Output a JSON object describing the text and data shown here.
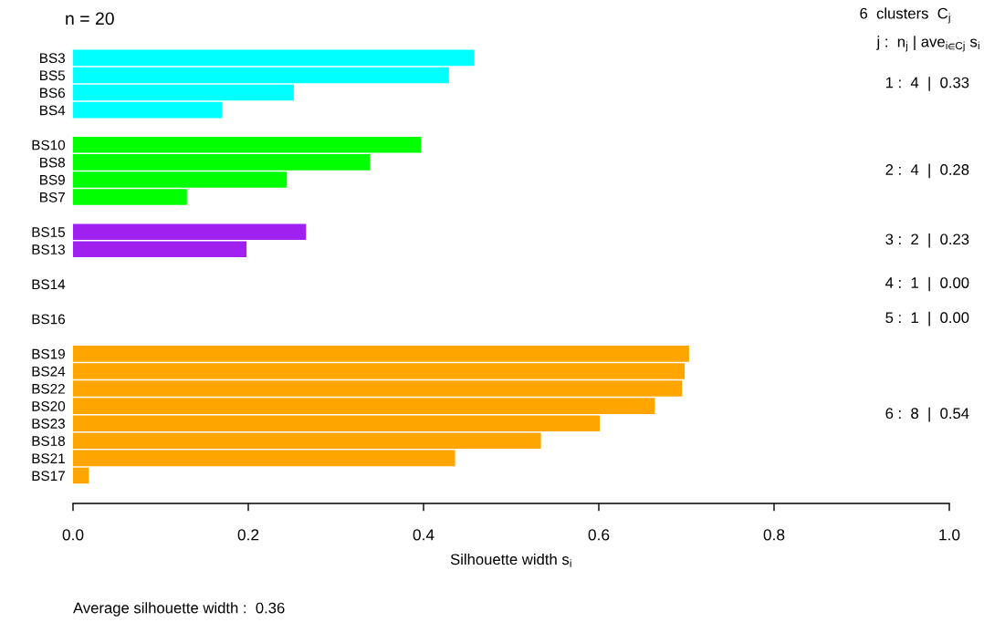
{
  "chart_data": {
    "type": "bar",
    "orientation": "horizontal",
    "xlabel": "Silhouette width s$_{i}$",
    "categories": [
      "BS3",
      "BS5",
      "BS6",
      "BS4",
      null,
      "BS10",
      "BS8",
      "BS9",
      "BS7",
      null,
      "BS15",
      "BS13",
      null,
      "BS14",
      null,
      "BS16",
      null,
      "BS19",
      "BS24",
      "BS22",
      "BS20",
      "BS23",
      "BS18",
      "BS21",
      "BS17"
    ],
    "values": [
      0.458,
      0.429,
      0.252,
      0.17,
      null,
      0.397,
      0.339,
      0.244,
      0.13,
      null,
      0.266,
      0.198,
      null,
      0,
      null,
      0,
      null,
      0.703,
      0.698,
      0.695,
      0.664,
      0.601,
      0.534,
      0.436,
      0.018
    ],
    "colors": [
      "#00ffff",
      "#00ffff",
      "#00ffff",
      "#00ffff",
      null,
      "#00ff00",
      "#00ff00",
      "#00ff00",
      "#00ff00",
      null,
      "#a020f0",
      "#a020f0",
      null,
      null,
      null,
      null,
      null,
      "#ffa500",
      "#ffa500",
      "#ffa500",
      "#ffa500",
      "#ffa500",
      "#ffa500",
      "#ffa500",
      "#ffa500"
    ],
    "xlim": [
      0,
      1
    ],
    "xticks": [
      {
        "value": 0,
        "label": "0.0"
      },
      0.2,
      0.4,
      0.6,
      0.8,
      {
        "value": 1,
        "label": "1.0"
      }
    ],
    "annotations": [
      "n = 20",
      "6  clusters  C$_{j}$",
      "j :  n$_{j}$ | ave$_{i∈Cj}$ s$_{i}$",
      "1 :  4  |  0.33",
      "2 :  4  |  0.28",
      "3 :  2  |  0.23",
      "4 :  1  |  0.00",
      "5 :  1  |  0.00",
      "6 :  8  |  0.54",
      "Average silhouette width :  0.36"
    ]
  }
}
